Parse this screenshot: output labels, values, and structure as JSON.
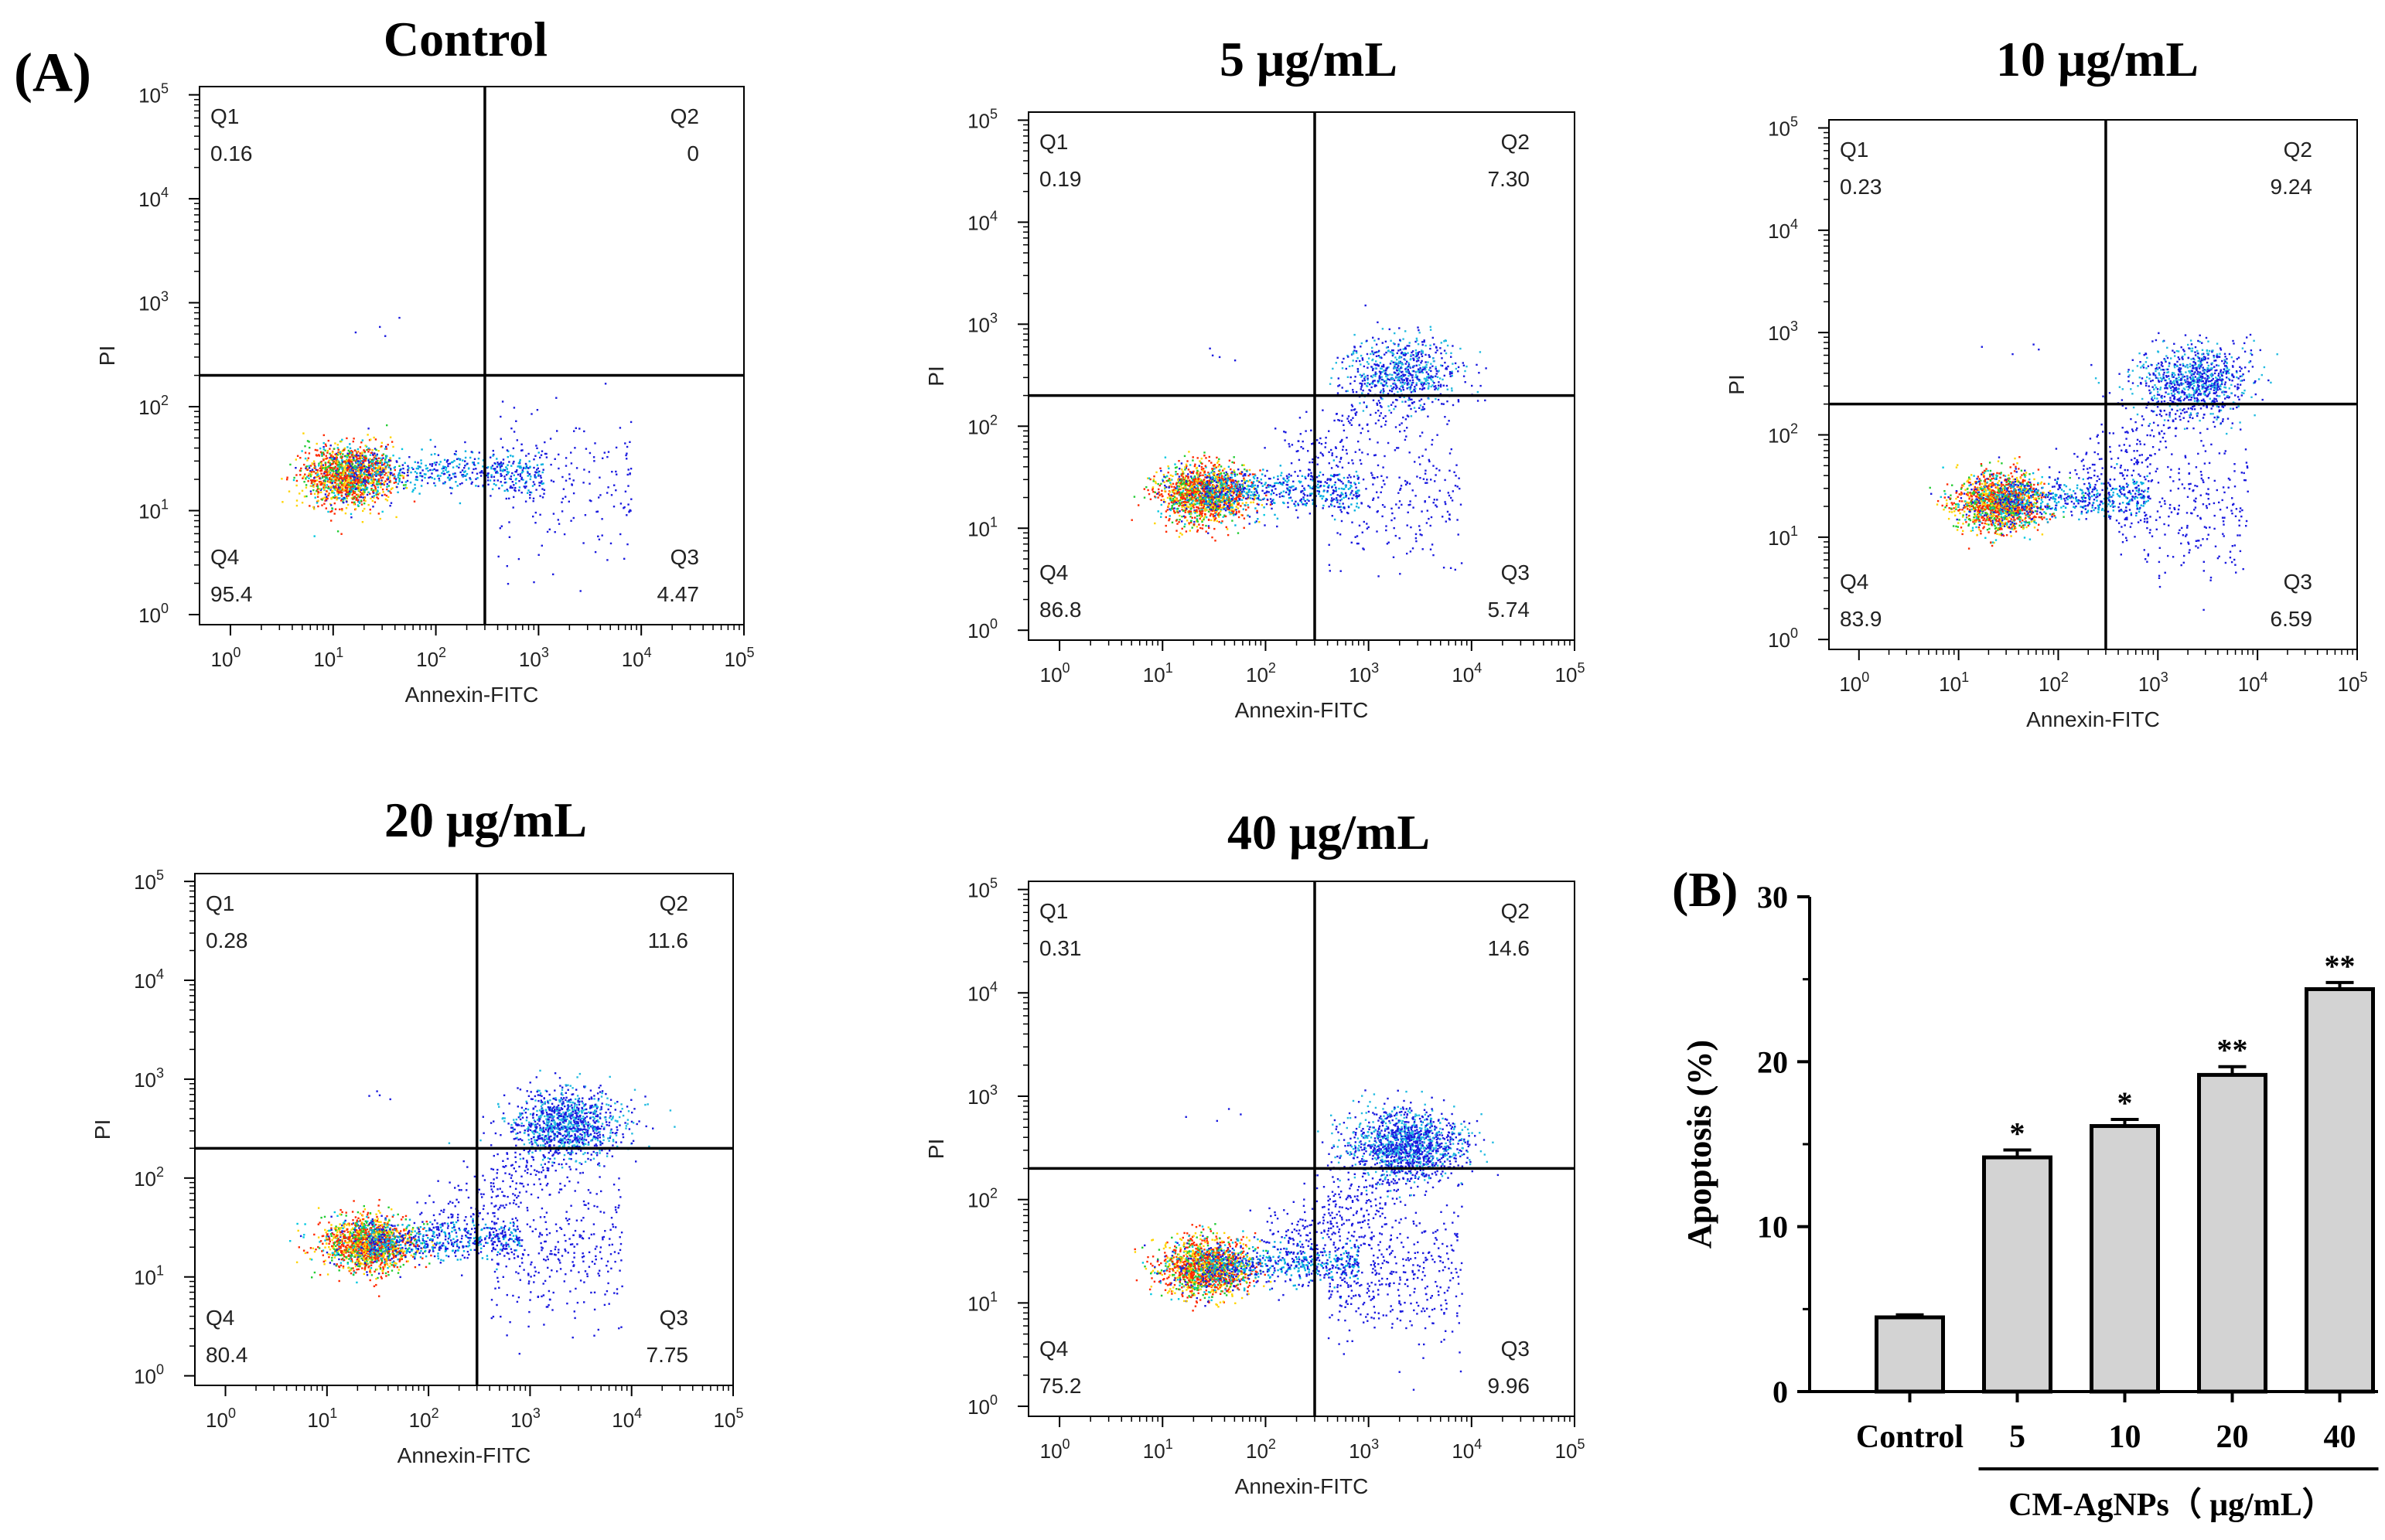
{
  "panel_labels": {
    "a": "(A)",
    "b": "(B)"
  },
  "flow_common": {
    "xlabel": "Annexin-FITC",
    "ylabel": "PI",
    "tick_base": "10",
    "tick_exponents": [
      "0",
      "1",
      "2",
      "3",
      "4",
      "5"
    ],
    "quadrant_names": [
      "Q1",
      "Q2",
      "Q3",
      "Q4"
    ]
  },
  "chart_data": [
    {
      "type": "scatter",
      "title": "Control",
      "xlabel": "Annexin-FITC",
      "ylabel": "PI",
      "x_scale": "log",
      "y_scale": "log",
      "xlim": [
        0.5,
        100000
      ],
      "ylim": [
        0.8,
        120000
      ],
      "gate_x": 300,
      "gate_y": 200,
      "quadrants": {
        "Q1": "0.16",
        "Q2": "0",
        "Q3": "4.47",
        "Q4": "95.4"
      }
    },
    {
      "type": "scatter",
      "title": "5 μg/mL",
      "xlabel": "Annexin-FITC",
      "ylabel": "PI",
      "x_scale": "log",
      "y_scale": "log",
      "xlim": [
        0.5,
        100000
      ],
      "ylim": [
        0.8,
        120000
      ],
      "gate_x": 300,
      "gate_y": 200,
      "quadrants": {
        "Q1": "0.19",
        "Q2": "7.30",
        "Q3": "5.74",
        "Q4": "86.8"
      }
    },
    {
      "type": "scatter",
      "title": "10 μg/mL",
      "xlabel": "Annexin-FITC",
      "ylabel": "PI",
      "x_scale": "log",
      "y_scale": "log",
      "xlim": [
        0.5,
        100000
      ],
      "ylim": [
        0.8,
        120000
      ],
      "gate_x": 300,
      "gate_y": 200,
      "quadrants": {
        "Q1": "0.23",
        "Q2": "9.24",
        "Q3": "6.59",
        "Q4": "83.9"
      }
    },
    {
      "type": "scatter",
      "title": "20 μg/mL",
      "xlabel": "Annexin-FITC",
      "ylabel": "PI",
      "x_scale": "log",
      "y_scale": "log",
      "xlim": [
        0.5,
        100000
      ],
      "ylim": [
        0.8,
        120000
      ],
      "gate_x": 300,
      "gate_y": 200,
      "quadrants": {
        "Q1": "0.28",
        "Q2": "11.6",
        "Q3": "7.75",
        "Q4": "80.4"
      }
    },
    {
      "type": "scatter",
      "title": "40 μg/mL",
      "xlabel": "Annexin-FITC",
      "ylabel": "PI",
      "x_scale": "log",
      "y_scale": "log",
      "xlim": [
        0.5,
        100000
      ],
      "ylim": [
        0.8,
        120000
      ],
      "gate_x": 300,
      "gate_y": 200,
      "quadrants": {
        "Q1": "0.31",
        "Q2": "14.6",
        "Q3": "9.96",
        "Q4": "75.2"
      }
    },
    {
      "type": "bar",
      "title": "",
      "categories": [
        "Control",
        "5",
        "10",
        "20",
        "40"
      ],
      "values": [
        4.5,
        14.2,
        16.1,
        19.2,
        24.4
      ],
      "errors": [
        0.15,
        0.45,
        0.4,
        0.5,
        0.4
      ],
      "significance": [
        "",
        "*",
        "*",
        "**",
        "**"
      ],
      "ylabel": "Apoptosis (%)",
      "xlabel": "CM-AgNPs（ μg/mL）",
      "ylim": [
        0,
        30
      ],
      "yticks": [
        "0",
        "10",
        "20",
        "30"
      ],
      "grid": false
    }
  ]
}
